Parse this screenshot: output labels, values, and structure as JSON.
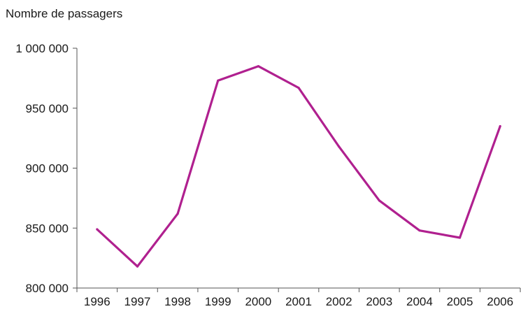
{
  "chart_data": {
    "type": "line",
    "title": "",
    "xlabel": "",
    "ylabel": "Nombre de passagers",
    "categories": [
      "1996",
      "1997",
      "1998",
      "1999",
      "2000",
      "2001",
      "2002",
      "2003",
      "2004",
      "2005",
      "2006"
    ],
    "series": [
      {
        "values": [
          849000,
          818000,
          862000,
          973000,
          985000,
          967000,
          918000,
          873000,
          848000,
          842000,
          935000
        ],
        "color": "#b0208f"
      }
    ],
    "ylim": [
      800000,
      1000000
    ],
    "yticks": [
      800000,
      850000,
      900000,
      950000,
      1000000
    ],
    "ytick_labels": [
      "800 000",
      "850 000",
      "900 000",
      "950 000",
      "1 000 000"
    ],
    "grid": false,
    "legend": "none"
  }
}
